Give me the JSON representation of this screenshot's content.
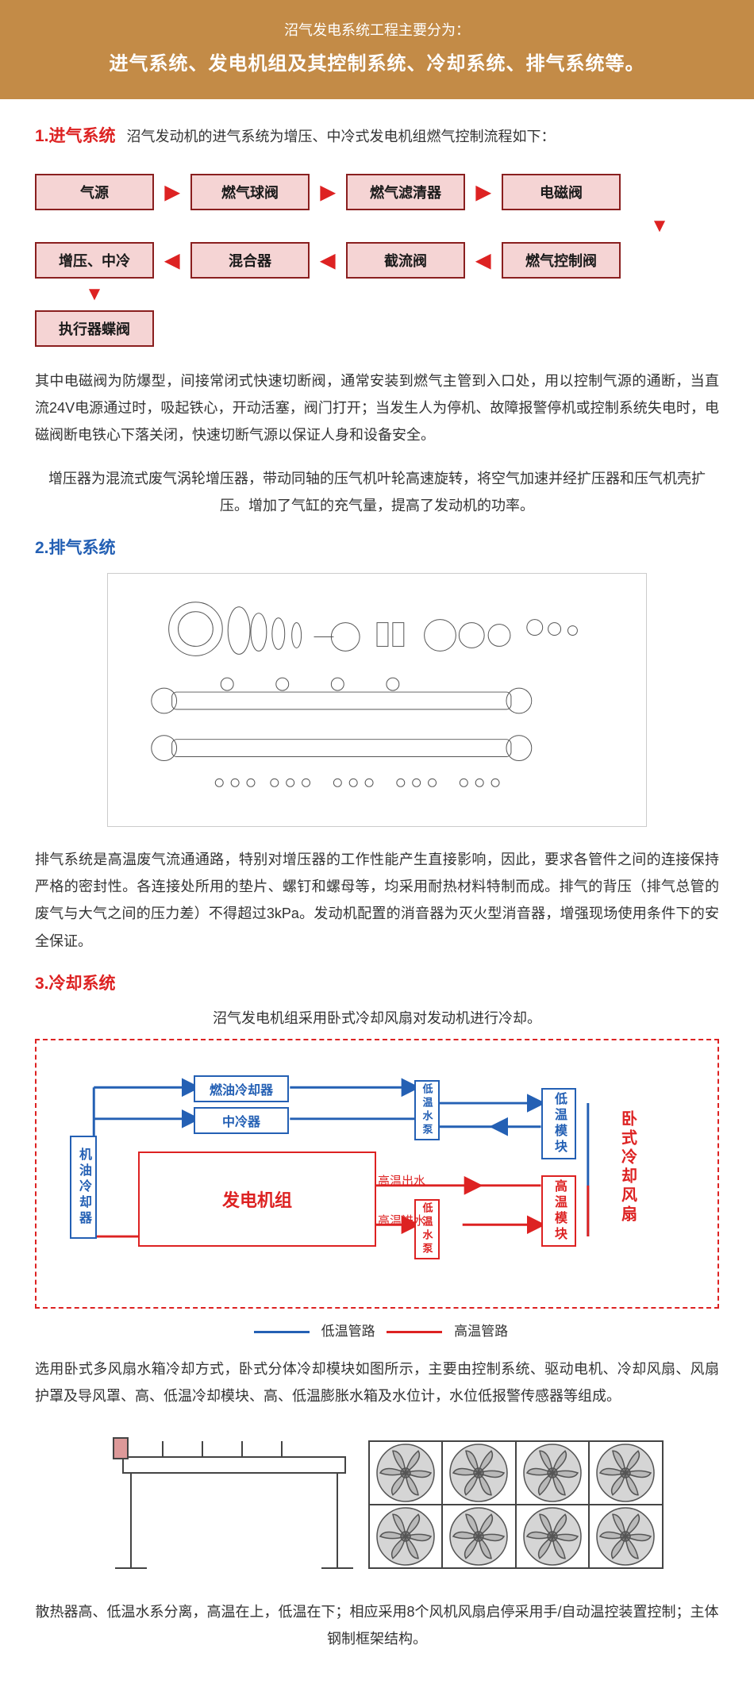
{
  "banner": {
    "sub": "沼气发电系统工程主要分为：",
    "main": "进气系统、发电机组及其控制系统、冷却系统、排气系统等。"
  },
  "s1": {
    "title": "1.进气系统",
    "desc": "沼气发动机的进气系统为增压、中冷式发电机组燃气控制流程如下：",
    "flow": {
      "r1": [
        "气源",
        "燃气球阀",
        "燃气滤清器",
        "电磁阀"
      ],
      "r2": [
        "增压、中冷",
        "混合器",
        "截流阀",
        "燃气控制阀"
      ],
      "r3": [
        "执行器蝶阀"
      ]
    },
    "p1": "其中电磁阀为防爆型，间接常闭式快速切断阀，通常安装到燃气主管到入口处，用以控制气源的通断，当直流24V电源通过时，吸起铁心，开动活塞，阀门打开；当发生人为停机、故障报警停机或控制系统失电时，电磁阀断电铁心下落关闭，快速切断气源以保证人身和设备安全。",
    "p2": "增压器为混流式废气涡轮增压器，带动同轴的压气机叶轮高速旋转，将空气加速并经扩压器和压气机壳扩压。增加了气缸的充气量，提高了发动机的功率。"
  },
  "s2": {
    "title": "2.排气系统",
    "p1": "排气系统是高温废气流通通路，特别对增压器的工作性能产生直接影响，因此，要求各管件之间的连接保持严格的密封性。各连接处所用的垫片、螺钉和螺母等，均采用耐热材料特制而成。排气的背压（排气总管的废气与大气之间的压力差）不得超过3kPa。发动机配置的消音器为灭火型消音器，增强现场使用条件下的安全保证。"
  },
  "s3": {
    "title": "3.冷却系统",
    "intro": "沼气发电机组采用卧式冷却风扇对发动机进行冷却。",
    "boxes": {
      "oil": "机油冷却器",
      "fuel": "燃油冷却器",
      "inter": "中冷器",
      "gen": "发电机组",
      "lpump": "低温水泵",
      "hpump": "低温水泵",
      "lmod": "低温模块",
      "hmod": "高温模块",
      "fan": "卧式冷却风扇",
      "hout": "高温出水",
      "hin": "高温进水"
    },
    "legend": {
      "low": "低温管路",
      "high": "高温管路"
    },
    "p1": "选用卧式多风扇水箱冷却方式，卧式分体冷却模块如图所示，主要由控制系统、驱动电机、冷却风扇、风扇护罩及导风罩、高、低温冷却模块、高、低温膨胀水箱及水位计，水位低报警传感器等组成。",
    "p2": "散热器高、低温水系分离，高温在上，低温在下；相应采用8个风机风扇启停采用手/自动温控装置控制；主体钢制框架结构。"
  },
  "colors": {
    "banner_bg": "#c38b47",
    "red": "#d22222",
    "blue": "#2460b4",
    "flowbox_bg": "#f5d4d4",
    "flowbox_border": "#8a1f1f",
    "text": "#333333",
    "grey": "#888888"
  }
}
